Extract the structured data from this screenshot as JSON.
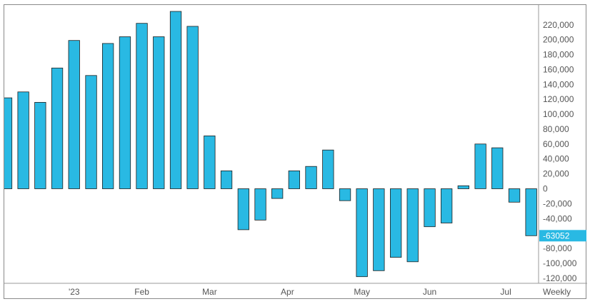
{
  "chart_data": {
    "type": "bar",
    "timeframe_label": "Weekly",
    "x_tick_labels": [
      "'23",
      "Feb",
      "Mar",
      "Apr",
      "May",
      "Jun",
      "Jul"
    ],
    "values": [
      122000,
      130000,
      116000,
      162000,
      199000,
      152000,
      195000,
      204000,
      222000,
      204000,
      238000,
      218000,
      71000,
      24000,
      -55000,
      -42000,
      -13000,
      24000,
      30000,
      52000,
      -16000,
      -118000,
      -110000,
      -92000,
      -98000,
      -51000,
      -46000,
      4000,
      60000,
      55000,
      -18000,
      -63052
    ],
    "last_value_label": "-63052",
    "y_tick_labels": [
      "220,000",
      "200,000",
      "180,000",
      "160,000",
      "140,000",
      "120,000",
      "100,000",
      "80,000",
      "60,000",
      "40,000",
      "20,000",
      "0",
      "-20,000",
      "-40,000",
      "-60,000",
      "-80,000",
      "-100,000",
      "-120,000"
    ],
    "y_ticks": [
      220000,
      200000,
      180000,
      160000,
      140000,
      120000,
      100000,
      80000,
      60000,
      40000,
      20000,
      0,
      -20000,
      -40000,
      -60000,
      -80000,
      -100000,
      -120000
    ],
    "ylim": [
      -125000,
      238000
    ],
    "grid": false,
    "y_axis_side": "right",
    "colors": {
      "bar": "#29b9e3",
      "bar_outline": "#1f1f1f",
      "badge": "#29b9e3",
      "frame": "#8a8a8a",
      "text": "#555555"
    }
  }
}
